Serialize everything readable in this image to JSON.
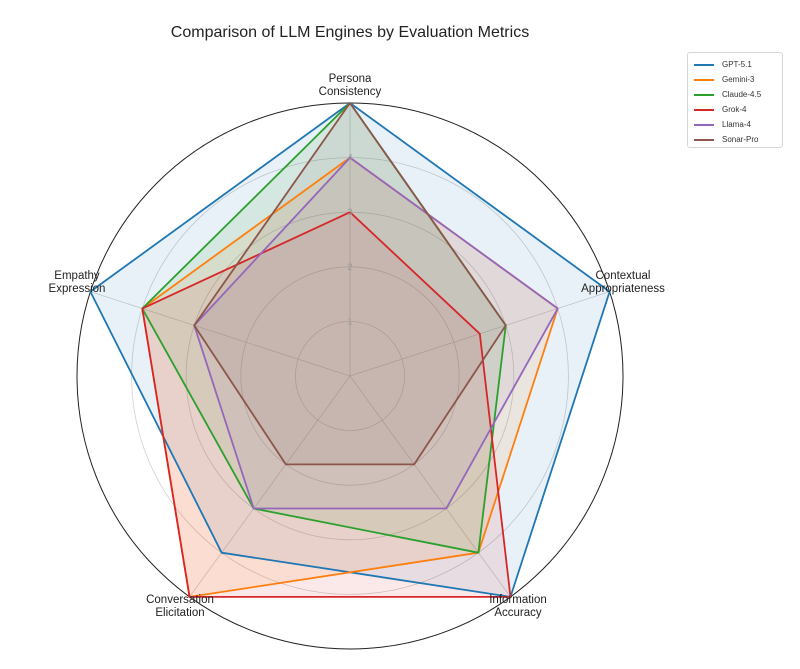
{
  "chart_data": {
    "type": "radar",
    "title": "Comparison of LLM Engines by Evaluation Metrics",
    "categories": [
      "Persona Consistency",
      "Contextual Appropriateness",
      "Information Accuracy",
      "Conversation Elicitation",
      "Empathy Expression"
    ],
    "category_lines": [
      [
        "Persona",
        "Consistency"
      ],
      [
        "Contextual",
        "Appropriateness"
      ],
      [
        "Information",
        "Accuracy"
      ],
      [
        "Conversation",
        "Elicitation"
      ],
      [
        "Empathy",
        "Expression"
      ]
    ],
    "rlim": [
      0,
      5
    ],
    "rticks": [
      1,
      2,
      3,
      4
    ],
    "grid": true,
    "legend_position": "top-right",
    "series": [
      {
        "name": "GPT-5.1",
        "color": "#1f77b4",
        "values": [
          5,
          5,
          5,
          4,
          5
        ]
      },
      {
        "name": "Gemini-3",
        "color": "#ff7f0e",
        "values": [
          4,
          4,
          4,
          5,
          4
        ]
      },
      {
        "name": "Claude-4.5",
        "color": "#2ca02c",
        "values": [
          5,
          3,
          4,
          3,
          4
        ]
      },
      {
        "name": "Grok-4",
        "color": "#d62728",
        "values": [
          3,
          2.5,
          5,
          5,
          4
        ]
      },
      {
        "name": "Llama-4",
        "color": "#9467bd",
        "values": [
          4,
          4,
          3,
          3,
          3
        ]
      },
      {
        "name": "Sonar-Pro",
        "color": "#8c564b",
        "values": [
          5,
          3,
          2,
          2,
          3
        ]
      }
    ]
  }
}
